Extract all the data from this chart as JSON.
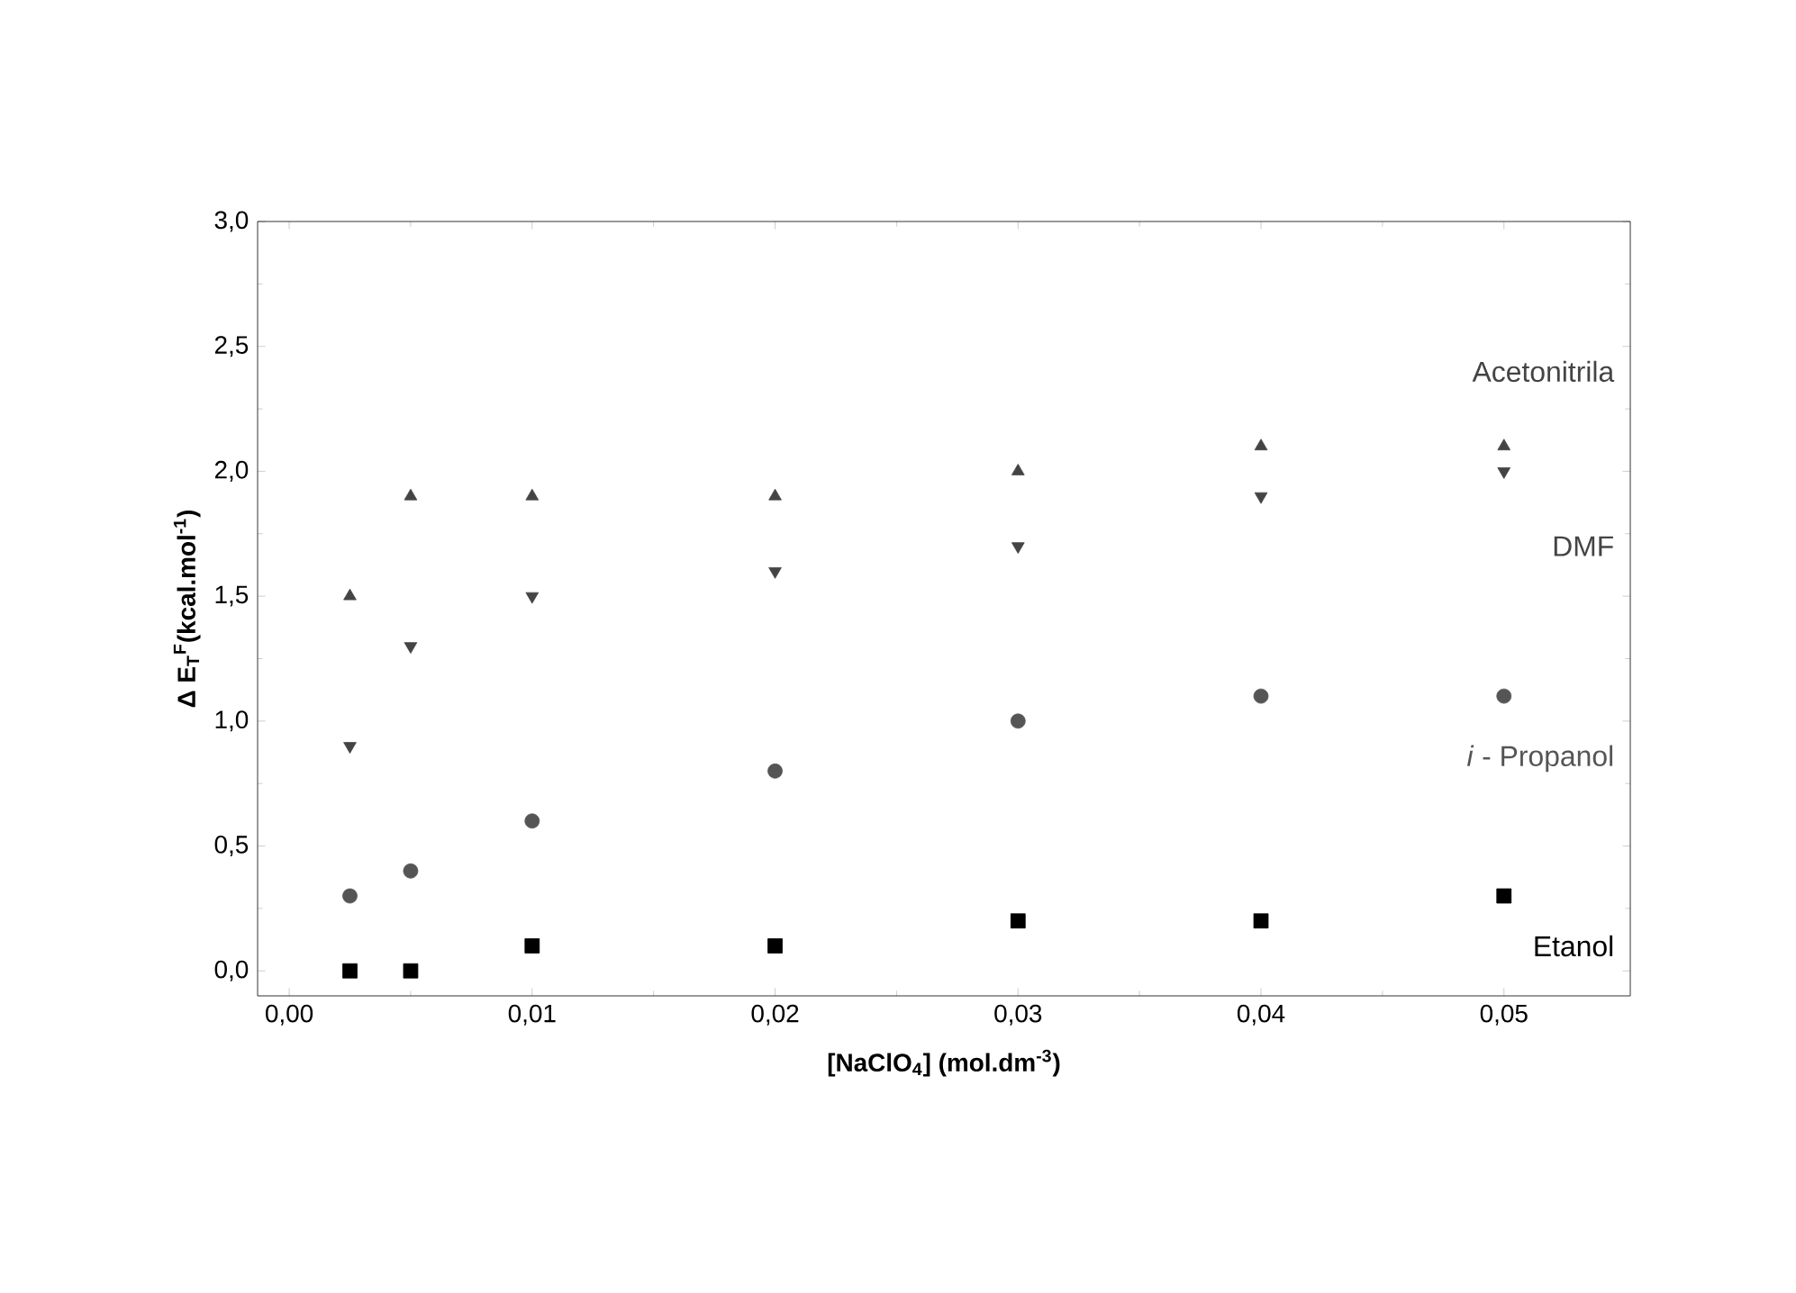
{
  "chart_data": {
    "type": "scatter",
    "xlabel": "[NaClO$_{4}$] (mol.dm$^{-3}$)",
    "ylabel": "Δ E$_{T}$$^{F}$(kcal.mol$^{-1}$)",
    "x": [
      0.0025,
      0.005,
      0.01,
      0.02,
      0.03,
      0.04,
      0.05
    ],
    "series": [
      {
        "name": "Acetonitrila",
        "color": "#444444",
        "marker": "triangle",
        "values": [
          1.5,
          1.9,
          1.9,
          1.9,
          2.0,
          2.1,
          2.1
        ]
      },
      {
        "name": "DMF",
        "color": "#444444",
        "marker": "triangle-down",
        "values": [
          0.9,
          1.3,
          1.5,
          1.6,
          1.7,
          1.9,
          2.0
        ]
      },
      {
        "name": "*i* - Propanol",
        "color": "#555555",
        "marker": "circle",
        "values": [
          0.3,
          0.4,
          0.6,
          0.8,
          1.0,
          1.1,
          1.1
        ]
      },
      {
        "name": "Etanol",
        "color": "#000000",
        "marker": "square",
        "values": [
          0.0,
          0.0,
          0.1,
          0.1,
          0.2,
          0.2,
          0.3
        ]
      }
    ],
    "xlim": [
      -0.0013,
      0.0552
    ],
    "ylim": [
      -0.1,
      3.0
    ],
    "xticks": [
      {
        "value": 0,
        "label": "0,00"
      },
      {
        "value": 0.01,
        "label": "0,01"
      },
      {
        "value": 0.02,
        "label": "0,02"
      },
      {
        "value": 0.03,
        "label": "0,03"
      },
      {
        "value": 0.04,
        "label": "0,04"
      },
      {
        "value": 0.05,
        "label": "0,05"
      }
    ],
    "yticks": [
      {
        "value": 0,
        "label": "0,0"
      },
      {
        "value": 0.5,
        "label": "0,5"
      },
      {
        "value": 1.0,
        "label": "1,0"
      },
      {
        "value": 1.5,
        "label": "1,5"
      },
      {
        "value": 2.0,
        "label": "2,0"
      },
      {
        "value": 2.5,
        "label": "2,5"
      },
      {
        "value": 3.0,
        "label": "3,0"
      }
    ],
    "grid": false,
    "legend": false
  }
}
